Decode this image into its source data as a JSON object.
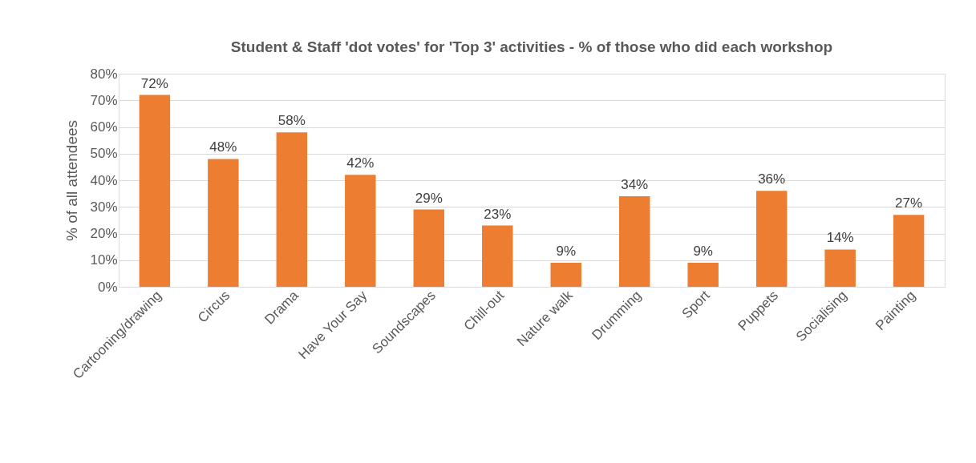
{
  "chart_data": {
    "type": "bar",
    "title": "Student & Staff 'dot votes' for 'Top 3' activities - % of those who did each workshop",
    "ylabel": "% of all attendees",
    "categories": [
      "Cartooning/drawing",
      "Circus",
      "Drama",
      "Have Your Say",
      "Soundscapes",
      "Chill-out",
      "Nature walk",
      "Drumming",
      "Sport",
      "Puppets",
      "Socialising",
      "Painting"
    ],
    "values": [
      72,
      48,
      58,
      42,
      29,
      23,
      9,
      34,
      9,
      36,
      14,
      27
    ],
    "value_labels": [
      "72%",
      "48%",
      "58%",
      "42%",
      "29%",
      "23%",
      "9%",
      "34%",
      "9%",
      "36%",
      "14%",
      "27%"
    ],
    "color": "#ed7d31",
    "ylim": [
      0,
      80
    ],
    "yticks": [
      {
        "value": 0,
        "label": "0%"
      },
      {
        "value": 10,
        "label": "10%"
      },
      {
        "value": 20,
        "label": "20%"
      },
      {
        "value": 30,
        "label": "30%"
      },
      {
        "value": 40,
        "label": "40%"
      },
      {
        "value": 50,
        "label": "50%"
      },
      {
        "value": 60,
        "label": "60%"
      },
      {
        "value": 70,
        "label": "70%"
      },
      {
        "value": 80,
        "label": "80%"
      }
    ],
    "grid": "y"
  }
}
